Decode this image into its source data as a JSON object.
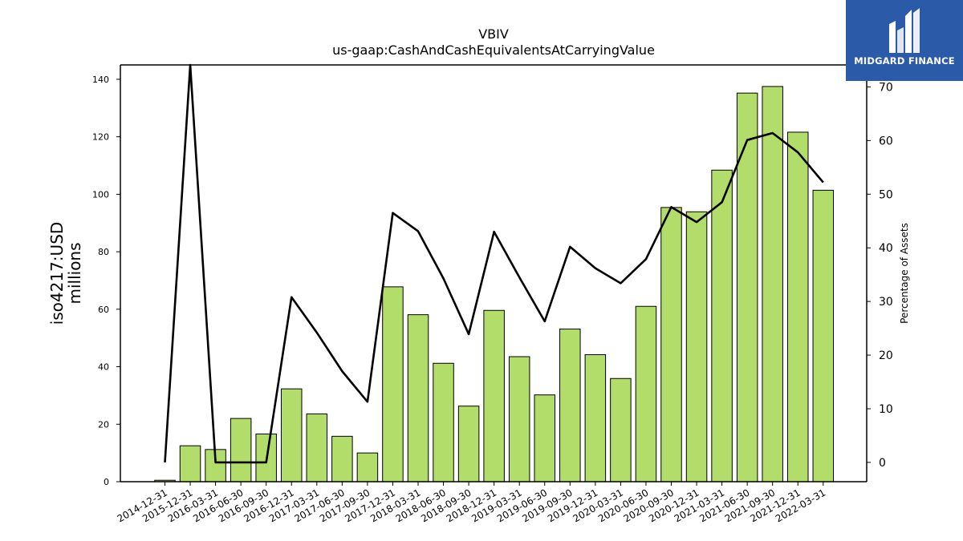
{
  "chart_data": {
    "type": "bar",
    "title": "VBIV",
    "subtitle": "us-gaap:CashAndCashEquivalentsAtCarryingValue",
    "ylabel": "iso4217:USD\nmillions",
    "y2label": "Percentage of Assets",
    "ylim": [
      0,
      145
    ],
    "y2lim": [
      -3.6,
      74.1
    ],
    "yticks": [
      0,
      20,
      40,
      60,
      80,
      100,
      120,
      140
    ],
    "y2ticks": [
      0,
      10,
      20,
      30,
      40,
      50,
      60,
      70
    ],
    "bar_color": "#b3dd6a",
    "line_color": "#000000",
    "categories": [
      "2014-12-31",
      "2015-12-31",
      "2016-03-31",
      "2016-06-30",
      "2016-09-30",
      "2016-12-31",
      "2017-03-31",
      "2017-06-30",
      "2017-09-30",
      "2017-12-31",
      "2018-03-31",
      "2018-06-30",
      "2018-09-30",
      "2018-12-31",
      "2019-03-31",
      "2019-06-30",
      "2019-09-30",
      "2019-12-31",
      "2020-03-31",
      "2020-06-30",
      "2020-09-30",
      "2020-12-31",
      "2021-03-31",
      "2021-06-30",
      "2021-09-30",
      "2021-12-31",
      "2022-03-31"
    ],
    "series": [
      {
        "type": "bar",
        "values": [
          0.5,
          12.5,
          11.2,
          22.0,
          16.6,
          32.3,
          23.6,
          15.8,
          10.0,
          67.8,
          58.1,
          41.2,
          26.3,
          59.6,
          43.5,
          30.2,
          53.1,
          44.2,
          35.9,
          61.0,
          95.4,
          93.9,
          108.4,
          135.2,
          137.5,
          121.6,
          101.4
        ]
      },
      {
        "type": "line",
        "axis": "right",
        "values": [
          0.0,
          74.1,
          0.0,
          0.0,
          0.0,
          30.8,
          24.2,
          17.0,
          11.3,
          46.5,
          43.1,
          34.3,
          23.9,
          43.0,
          34.5,
          26.3,
          40.2,
          36.2,
          33.4,
          37.9,
          47.6,
          44.8,
          48.5,
          60.1,
          61.4,
          57.8,
          52.2
        ]
      }
    ],
    "grid": false,
    "legend": "none"
  },
  "logo": {
    "text": "MIDGARD FINANCE",
    "bg": "#2b5aa8"
  }
}
